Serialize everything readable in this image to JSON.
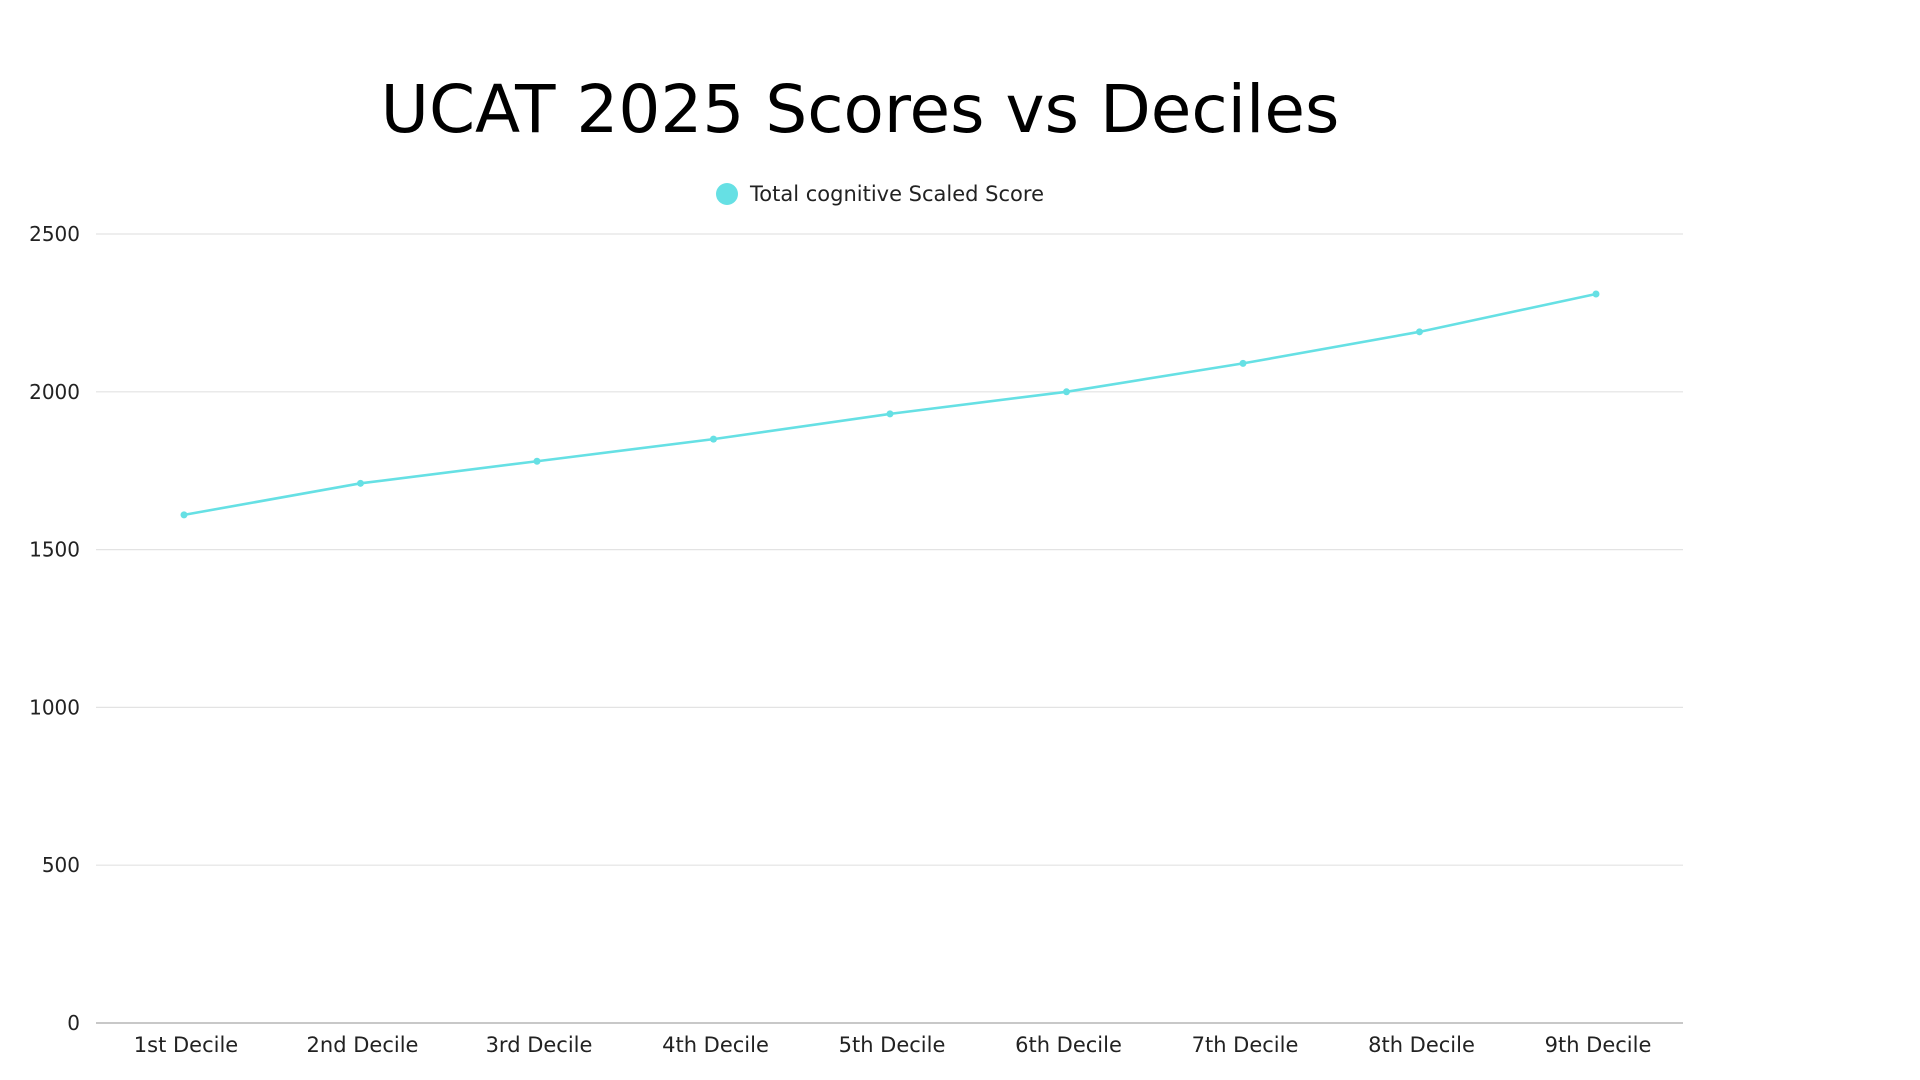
{
  "chart_data": {
    "type": "line",
    "title": "UCAT 2025 Scores vs Deciles",
    "xlabel": "",
    "ylabel": "",
    "categories": [
      "1st Decile",
      "2nd Decile",
      "3rd Decile",
      "4th Decile",
      "5th Decile",
      "6th Decile",
      "7th Decile",
      "8th Decile",
      "9th Decile"
    ],
    "series": [
      {
        "name": "Total cognitive Scaled Score",
        "color": "#66e0e4",
        "values": [
          1610,
          1710,
          1780,
          1850,
          1930,
          2000,
          2090,
          2190,
          2310
        ]
      }
    ],
    "ylim": [
      0,
      2500
    ],
    "yticks": [
      "0",
      "500",
      "1000",
      "1500",
      "2000",
      "2500"
    ],
    "grid": true,
    "legend": "top-center"
  }
}
